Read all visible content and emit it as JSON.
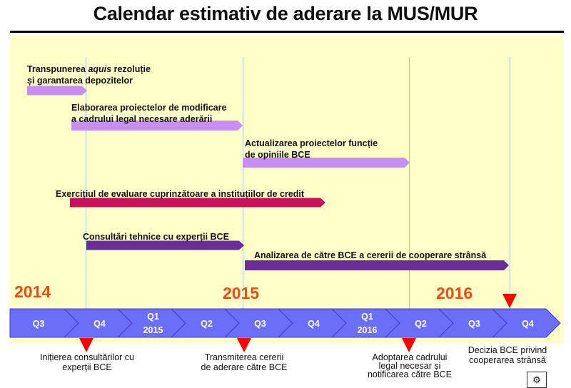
{
  "title": "Calendar estimativ de aderare la MUS/MUR",
  "years": [
    "2014",
    "2015",
    "2016"
  ],
  "quarters": [
    {
      "label": "Q3",
      "sub": ""
    },
    {
      "label": "Q4",
      "sub": ""
    },
    {
      "label": "Q1",
      "sub": "2015"
    },
    {
      "label": "Q2",
      "sub": ""
    },
    {
      "label": "Q3",
      "sub": ""
    },
    {
      "label": "Q4",
      "sub": ""
    },
    {
      "label": "Q1",
      "sub": "2016"
    },
    {
      "label": "Q2",
      "sub": ""
    },
    {
      "label": "Q3",
      "sub": ""
    },
    {
      "label": "Q4",
      "sub": ""
    }
  ],
  "tasks": [
    {
      "line1_pre": "Transpunerea ",
      "line1_em": "aquis",
      "line1_post": " rezoluție",
      "line2": "și garantarea depozitelor",
      "color": "#c88ef2"
    },
    {
      "line1": "Elaborarea proiectelor de modificare",
      "line2": "a cadrului legal necesare aderării",
      "color": "#c88ef2"
    },
    {
      "line1": "Actualizarea proiectelor funcție",
      "line2": "de opiniile BCE",
      "color": "#c88ef2"
    },
    {
      "line1": "Exercițiul de evaluare cuprinzătoare a instituțiilor de credit",
      "color": "#c8105c"
    },
    {
      "line1": "Consultări tehnice cu experții BCE",
      "color": "#6a2c96"
    },
    {
      "line1": "Analizarea de către BCE a cererii de cooperare strânsă",
      "color": "#6a2c96"
    }
  ],
  "milestones": [
    {
      "line1": "Inițierea consultărilor cu",
      "line2": "experții BCE"
    },
    {
      "line1": "Transmiterea cererii",
      "line2": "de aderare către BCE"
    },
    {
      "line1": "Adoptarea cadrului",
      "line2": "legal necesar și",
      "line3": "notificarea către BCE"
    },
    {
      "line1": "Decizia BCE privind",
      "line2": "cooperarea strânsă"
    }
  ],
  "colors": {
    "timeline": "#6b6ef6",
    "timeline_edge": "#3d3fd4",
    "year": "#f04a12",
    "panel": "#ffffc8",
    "marker": "#ff0000"
  }
}
